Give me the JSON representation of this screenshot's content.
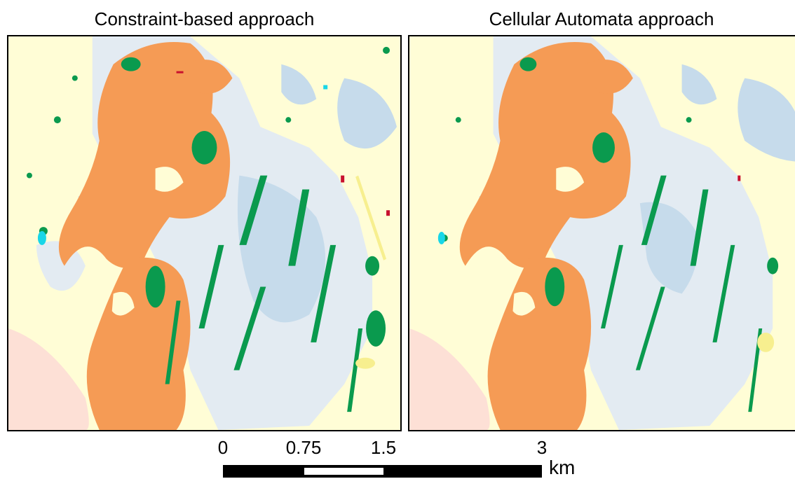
{
  "panels": [
    {
      "title": "Constraint-based approach"
    },
    {
      "title": "Cellular Automata approach"
    }
  ],
  "scale_bar": {
    "ticks": [
      "0",
      "0.75",
      "1.5",
      "3"
    ],
    "unit": "km"
  },
  "legend_colors": {
    "background": "#fffdd6",
    "urban_orange": "#f59b55",
    "water_blue": "#c6dbeb",
    "light_blue": "#e3ebf2",
    "forest_green": "#0a9a4e",
    "pink": "#fde0d6",
    "yellow": "#f7ef8f",
    "red": "#c8102e",
    "cyan": "#18d6e8"
  }
}
